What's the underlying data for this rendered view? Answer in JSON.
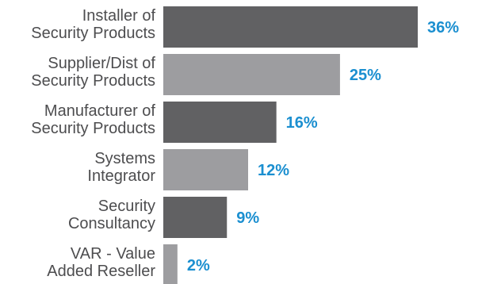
{
  "chart_data": {
    "type": "bar",
    "orientation": "horizontal",
    "title": "",
    "xlabel": "",
    "ylabel": "",
    "xlim": [
      0,
      36
    ],
    "grid": false,
    "legend": "none",
    "categories": [
      [
        "Installer of",
        "Security Products"
      ],
      [
        "Supplier/Dist of",
        "Security Products"
      ],
      [
        "Manufacturer of",
        "Security Products"
      ],
      [
        "Systems",
        "Integrator"
      ],
      [
        "Security",
        "Consultancy"
      ],
      [
        "VAR - Value",
        "Added Reseller"
      ]
    ],
    "values": [
      36,
      25,
      16,
      12,
      9,
      2
    ],
    "value_labels": [
      "36%",
      "25%",
      "16%",
      "12%",
      "9%",
      "2%"
    ],
    "bar_colors": [
      "#616163",
      "#9d9da0",
      "#616163",
      "#9d9da0",
      "#616163",
      "#9d9da0"
    ],
    "label_color": "#4d4d4f",
    "value_label_color": "#1b8fd0"
  }
}
